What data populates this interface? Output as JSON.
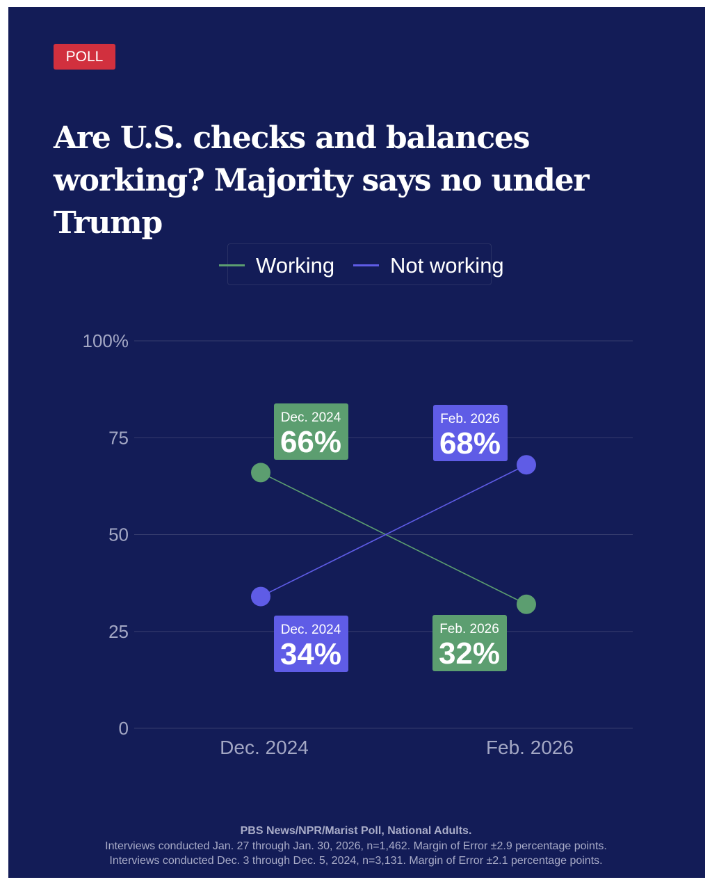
{
  "tag": "POLL",
  "title": "Are U.S. checks and balances working? Majority says no under Trump",
  "colors": {
    "background": "#131c57",
    "tag": "#d1303e",
    "working": "#5c9e70",
    "not_working": "#5f5ce6"
  },
  "chart_data": {
    "type": "line",
    "categories": [
      "Dec. 2024",
      "Feb. 2026"
    ],
    "series": [
      {
        "name": "Working",
        "values": [
          66,
          32
        ],
        "color": "#5c9e70"
      },
      {
        "name": "Not working",
        "values": [
          34,
          68
        ],
        "color": "#5f5ce6"
      }
    ],
    "ylim": [
      0,
      100
    ],
    "yticks": [
      0,
      25,
      50,
      75,
      100
    ],
    "ytick_labels": [
      "0",
      "25",
      "50",
      "75",
      "100%"
    ],
    "grid": true,
    "legend": "top",
    "annotations": [
      {
        "date": "Dec. 2024",
        "value": "66%",
        "series": "Working"
      },
      {
        "date": "Feb. 2026",
        "value": "68%",
        "series": "Not working"
      },
      {
        "date": "Dec. 2024",
        "value": "34%",
        "series": "Not working"
      },
      {
        "date": "Feb. 2026",
        "value": "32%",
        "series": "Working"
      }
    ]
  },
  "source": {
    "line1": "PBS News/NPR/Marist Poll, National Adults.",
    "line2": "Interviews conducted Jan. 27 through Jan. 30, 2026, n=1,462. Margin of Error ±2.9 percentage points.",
    "line3": "Interviews conducted Dec. 3 through Dec. 5, 2024, n=3,131. Margin of Error ±2.1 percentage points."
  }
}
